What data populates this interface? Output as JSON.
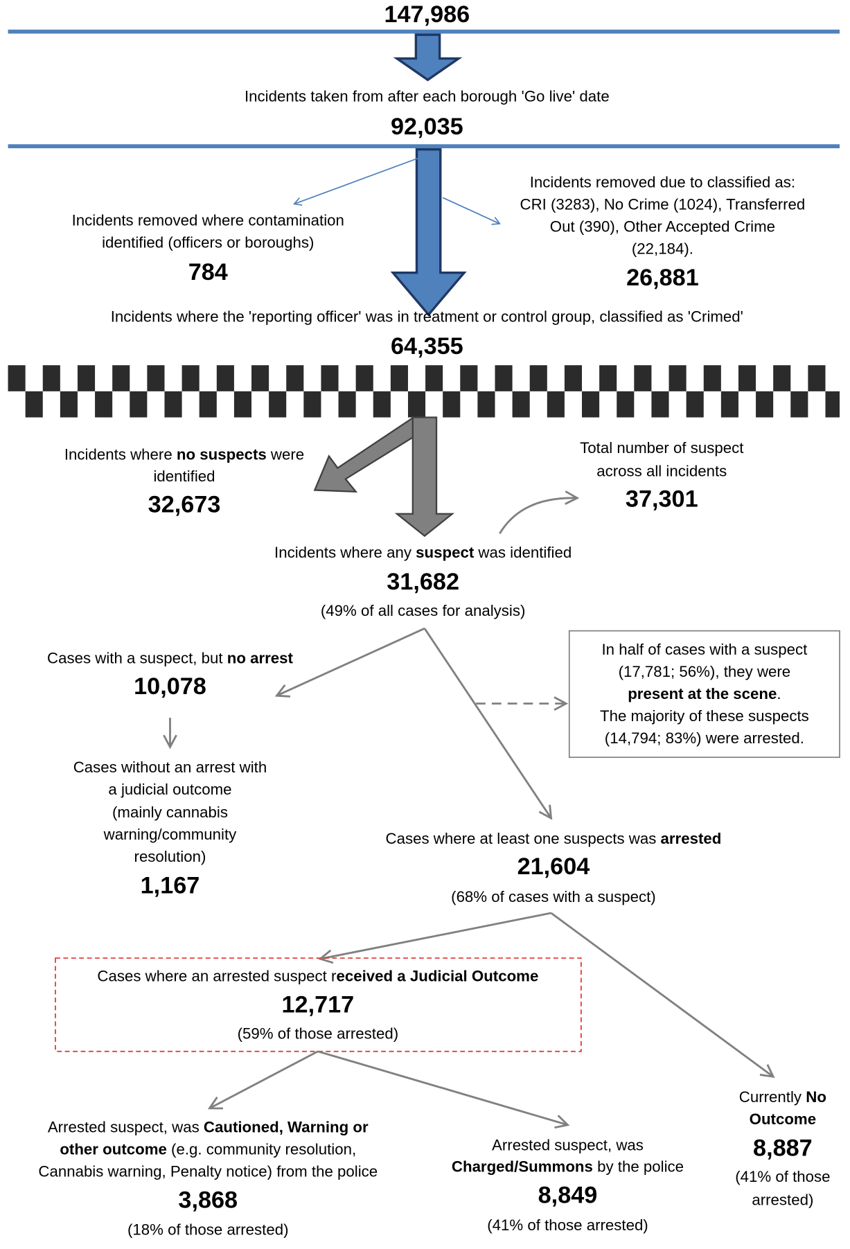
{
  "nodes": [
    {
      "value": "147,986"
    },
    {
      "lines": [
        [
          "Incidents taken from after each borough 'Go live' date"
        ]
      ],
      "value": "92,035"
    },
    {
      "lines": [
        [
          "Incidents removed where contamination"
        ],
        [
          "identified (officers or boroughs)"
        ]
      ],
      "value": "784"
    },
    {
      "lines": [
        [
          "Incidents removed due to classified as:"
        ],
        [
          "CRI (3283), No Crime (1024), Transferred"
        ],
        [
          "Out (390), Other Accepted Crime"
        ],
        [
          "(22,184)."
        ]
      ],
      "value": "26,881"
    },
    {
      "lines": [
        [
          "Incidents where the 'reporting officer' was in treatment or control group, classified as 'Crimed'"
        ]
      ],
      "value": "64,355"
    },
    {
      "lines": [
        [
          "Incidents where ",
          {
            "bold": "no suspects"
          },
          " were"
        ],
        [
          "identified"
        ]
      ],
      "value": "32,673"
    },
    {
      "lines": [
        [
          "Total number of suspect"
        ],
        [
          "across all incidents"
        ]
      ],
      "value": "37,301"
    },
    {
      "lines": [
        [
          "Incidents where any ",
          {
            "bold": "suspect"
          },
          " was identified"
        ]
      ],
      "value": "31,682",
      "notes": [
        "(49% of all cases for analysis)"
      ]
    },
    {
      "lines": [
        [
          "Cases with a suspect, but ",
          {
            "bold": "no arrest"
          }
        ]
      ],
      "value": "10,078"
    },
    {
      "lines": [
        [
          "Cases without an arrest with"
        ],
        [
          "a judicial outcome"
        ],
        [
          "(mainly cannabis"
        ],
        [
          "warning/community"
        ],
        [
          "resolution)"
        ]
      ],
      "value": "1,167"
    },
    {
      "lines": [
        [
          "In half of cases with a suspect"
        ],
        [
          "(17,781; 56%), they were"
        ],
        [
          {
            "bold": "present at the scene"
          },
          "."
        ],
        [
          "The majority of these suspects"
        ],
        [
          "(14,794; 83%) were arrested."
        ]
      ]
    },
    {
      "lines": [
        [
          "Cases where at least one suspects was ",
          {
            "bold": "arrested"
          }
        ]
      ],
      "value": "21,604",
      "notes": [
        "(68% of cases with a suspect)"
      ]
    },
    {
      "lines": [
        [
          "Cases where an arrested suspect r",
          {
            "bold": "eceived a Judicial Outcome"
          }
        ]
      ],
      "value": "12,717",
      "notes": [
        "(59% of those arrested)"
      ]
    },
    {
      "lines": [
        [
          "Arrested suspect, was ",
          {
            "bold": "Cautioned, Warning or"
          }
        ],
        [
          {
            "bold": "other outcome"
          },
          " (e.g. community resolution,"
        ],
        [
          "Cannabis warning, Penalty notice) from the police"
        ]
      ],
      "value": "3,868",
      "notes": [
        "(18% of those arrested)"
      ]
    },
    {
      "lines": [
        [
          "Arrested suspect, was"
        ],
        [
          {
            "bold": "Charged/Summons"
          },
          " by the police"
        ]
      ],
      "value": "8,849",
      "notes": [
        "(41% of those arrested)"
      ]
    },
    {
      "lines": [
        [
          "Currently ",
          {
            "bold": "No"
          }
        ],
        [
          {
            "bold": "Outcome"
          }
        ]
      ],
      "value": "8,887",
      "notes": [
        "(41% of those",
        "arrested)"
      ]
    }
  ]
}
